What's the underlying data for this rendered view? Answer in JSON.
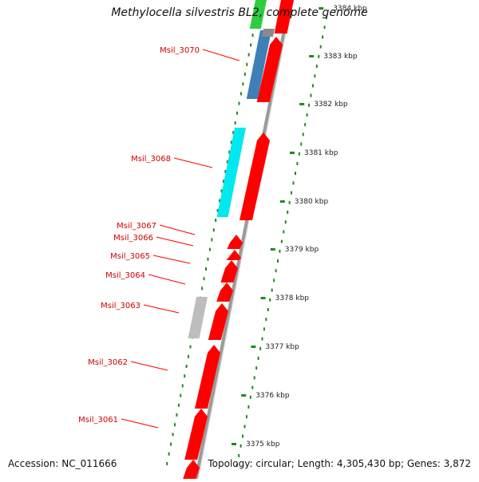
{
  "genome": {
    "title": "Methylocella silvestris BL2, complete genome",
    "accession_text": "Accession: NC_011666",
    "summary_text": "Topology: circular; Length: 4,305,430 bp; Genes: 3,872"
  },
  "scale": {
    "ticks": [
      {
        "label": "3375 kbp"
      },
      {
        "label": "3376 kbp"
      },
      {
        "label": "3377 kbp"
      },
      {
        "label": "3378 kbp"
      },
      {
        "label": "3379 kbp"
      },
      {
        "label": "3380 kbp"
      },
      {
        "label": "3381 kbp"
      },
      {
        "label": "3382 kbp"
      },
      {
        "label": "3383 kbp"
      },
      {
        "label": "3384 kbp"
      }
    ]
  },
  "genes": [
    {
      "label": "Msil_3070"
    },
    {
      "label": "Msil_3068"
    },
    {
      "label": "Msil_3067"
    },
    {
      "label": "Msil_3066"
    },
    {
      "label": "Msil_3065"
    },
    {
      "label": "Msil_3064"
    },
    {
      "label": "Msil_3063"
    },
    {
      "label": "Msil_3062"
    },
    {
      "label": "Msil_3061"
    }
  ],
  "colors": {
    "cds": "#ff0000",
    "label": "#cc0000",
    "backbone": "#9a9a9a",
    "gc_dot": "#1f8a1f",
    "blue_feature": "#3f7fb8",
    "cyan_feature": "#00e8f0",
    "gray_feature": "#bdbdbd",
    "green_feature": "#2ecc40"
  }
}
